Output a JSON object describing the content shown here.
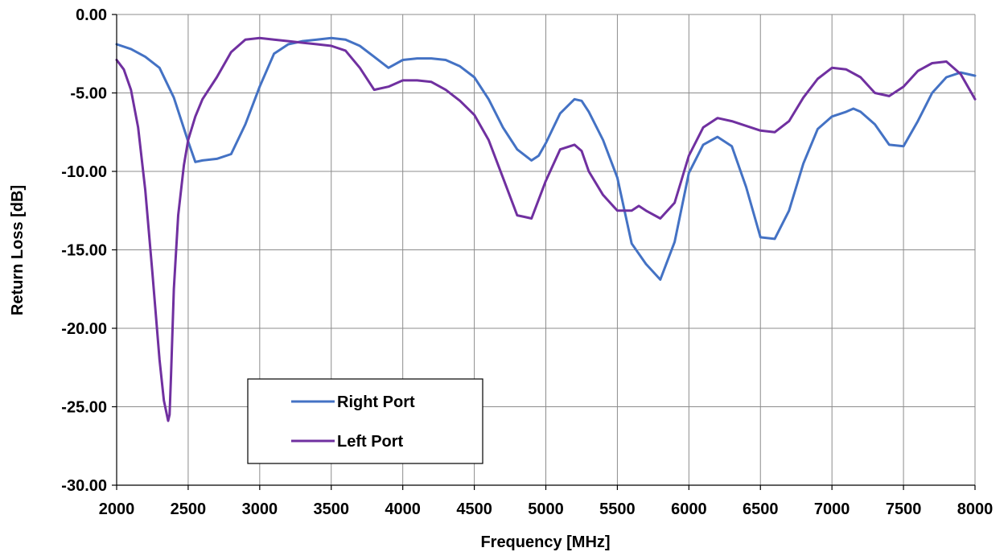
{
  "chart_data": {
    "type": "line",
    "title": "",
    "xlabel": "Frequency [MHz]",
    "ylabel": "Return Loss [dB]",
    "xlim": [
      2000,
      8000
    ],
    "ylim": [
      -30,
      0
    ],
    "x_ticks": [
      2000,
      2500,
      3000,
      3500,
      4000,
      4500,
      5000,
      5500,
      6000,
      6500,
      7000,
      7500,
      8000
    ],
    "y_ticks": [
      0,
      -5,
      -10,
      -15,
      -20,
      -25,
      -30
    ],
    "x_tick_labels": [
      "2000",
      "2500",
      "3000",
      "3500",
      "4000",
      "4500",
      "5000",
      "5500",
      "6000",
      "6500",
      "7000",
      "7500",
      "8000"
    ],
    "y_tick_labels": [
      "0.00",
      "-5.00",
      "-10.00",
      "-15.00",
      "-20.00",
      "-25.00",
      "-30.00"
    ],
    "grid": true,
    "legend": {
      "placement": "lower-left-inside"
    },
    "series": [
      {
        "name": "Right Port",
        "color": "#4472C4",
        "x": [
          2000,
          2100,
          2200,
          2300,
          2400,
          2500,
          2550,
          2600,
          2700,
          2800,
          2900,
          3000,
          3100,
          3200,
          3300,
          3400,
          3500,
          3600,
          3700,
          3800,
          3900,
          4000,
          4100,
          4200,
          4300,
          4400,
          4500,
          4600,
          4700,
          4800,
          4900,
          4950,
          5000,
          5100,
          5200,
          5250,
          5300,
          5400,
          5500,
          5600,
          5700,
          5800,
          5900,
          6000,
          6100,
          6200,
          6300,
          6400,
          6500,
          6600,
          6700,
          6800,
          6900,
          7000,
          7100,
          7150,
          7200,
          7300,
          7400,
          7500,
          7600,
          7700,
          7800,
          7900,
          8000
        ],
        "values": [
          -1.9,
          -2.2,
          -2.7,
          -3.4,
          -5.3,
          -8.1,
          -9.4,
          -9.3,
          -9.2,
          -8.9,
          -7.0,
          -4.6,
          -2.5,
          -1.9,
          -1.7,
          -1.6,
          -1.5,
          -1.6,
          -2.0,
          -2.7,
          -3.4,
          -2.9,
          -2.8,
          -2.8,
          -2.9,
          -3.3,
          -4.0,
          -5.4,
          -7.2,
          -8.6,
          -9.3,
          -9.0,
          -8.2,
          -6.3,
          -5.4,
          -5.5,
          -6.2,
          -8.0,
          -10.4,
          -14.6,
          -15.9,
          -16.9,
          -14.5,
          -10.1,
          -8.3,
          -7.8,
          -8.4,
          -11.0,
          -14.2,
          -14.3,
          -12.5,
          -9.5,
          -7.3,
          -6.5,
          -6.2,
          -6.0,
          -6.2,
          -7.0,
          -8.3,
          -8.4,
          -6.8,
          -5.0,
          -4.0,
          -3.7,
          -3.9
        ]
      },
      {
        "name": "Left Port",
        "color": "#7030A0",
        "x": [
          2000,
          2050,
          2100,
          2150,
          2200,
          2250,
          2300,
          2330,
          2360,
          2370,
          2380,
          2400,
          2430,
          2470,
          2500,
          2550,
          2600,
          2700,
          2800,
          2900,
          3000,
          3100,
          3200,
          3300,
          3400,
          3500,
          3600,
          3700,
          3800,
          3900,
          4000,
          4100,
          4200,
          4300,
          4400,
          4500,
          4600,
          4700,
          4800,
          4850,
          4900,
          5000,
          5100,
          5200,
          5250,
          5300,
          5400,
          5500,
          5600,
          5650,
          5700,
          5800,
          5900,
          6000,
          6100,
          6200,
          6300,
          6400,
          6500,
          6600,
          6700,
          6800,
          6900,
          7000,
          7100,
          7200,
          7300,
          7400,
          7500,
          7600,
          7700,
          7800,
          7900,
          8000
        ],
        "values": [
          -2.9,
          -3.5,
          -4.8,
          -7.2,
          -11.2,
          -16.5,
          -22.0,
          -24.6,
          -25.9,
          -25.5,
          -23.0,
          -17.5,
          -12.8,
          -9.6,
          -8.0,
          -6.5,
          -5.4,
          -4.0,
          -2.4,
          -1.6,
          -1.5,
          -1.6,
          -1.7,
          -1.8,
          -1.9,
          -2.0,
          -2.3,
          -3.4,
          -4.8,
          -4.6,
          -4.2,
          -4.2,
          -4.3,
          -4.8,
          -5.5,
          -6.4,
          -8.0,
          -10.4,
          -12.8,
          -12.9,
          -13.0,
          -10.6,
          -8.6,
          -8.3,
          -8.7,
          -10.0,
          -11.5,
          -12.5,
          -12.5,
          -12.2,
          -12.5,
          -13.0,
          -12.0,
          -9.0,
          -7.2,
          -6.6,
          -6.8,
          -7.1,
          -7.4,
          -7.5,
          -6.8,
          -5.3,
          -4.1,
          -3.4,
          -3.5,
          -4.0,
          -5.0,
          -5.2,
          -4.6,
          -3.6,
          -3.1,
          -3.0,
          -3.8,
          -5.4
        ]
      }
    ]
  }
}
